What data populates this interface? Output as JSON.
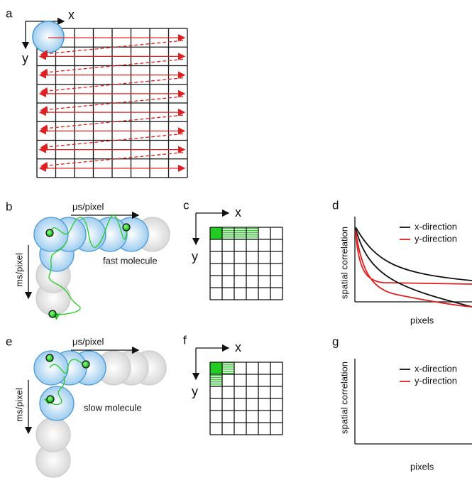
{
  "panels": {
    "a": {
      "label": "a",
      "x_axis": "x",
      "y_axis": "y"
    },
    "b": {
      "label": "b",
      "x_axis": "μs/pixel",
      "y_axis": "ms/pixel",
      "caption": "fast molecule"
    },
    "c": {
      "label": "c",
      "x_axis": "x",
      "y_axis": "y"
    },
    "d": {
      "label": "d",
      "y_axis": "spatial correlation",
      "x_axis": "pixels",
      "legend": [
        "x-direction",
        "y-direction"
      ]
    },
    "e": {
      "label": "e",
      "x_axis": "μs/pixel",
      "y_axis": "ms/pixel",
      "caption": "slow molecule"
    },
    "f": {
      "label": "f",
      "x_axis": "x",
      "y_axis": "y"
    },
    "g": {
      "label": "g",
      "y_axis": "spatial correlation",
      "x_axis": "pixels",
      "legend": [
        "x-direction",
        "y-direction"
      ]
    }
  }
}
